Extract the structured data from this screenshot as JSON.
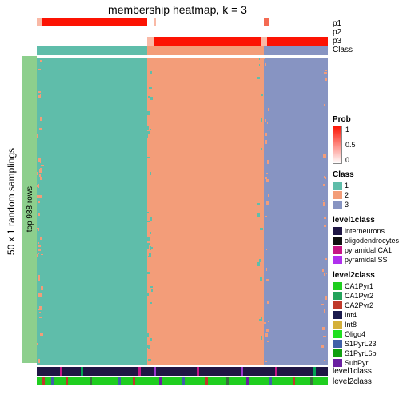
{
  "title": "membership heatmap, k = 3",
  "left_axis_label": "50 x 1 random samplings",
  "row_anno_label": "top 988 rows",
  "row_anno_color": "#8dcf8d",
  "top_annotations": {
    "labels": [
      "p1",
      "p2",
      "p3",
      "Class"
    ],
    "rows": [
      {
        "segments": [
          {
            "w": 0.02,
            "c": "#f9b9a6"
          },
          {
            "w": 0.36,
            "c": "#fc1303"
          },
          {
            "w": 0.02,
            "c": "#ffffff"
          },
          {
            "w": 0.01,
            "c": "#f9b9a6"
          },
          {
            "w": 0.37,
            "c": "#ffffff"
          },
          {
            "w": 0.02,
            "c": "#f46a52"
          },
          {
            "w": 0.2,
            "c": "#ffffff"
          }
        ]
      },
      {
        "segments": [
          {
            "w": 1.0,
            "c": "#ffffff"
          }
        ]
      },
      {
        "segments": [
          {
            "w": 0.38,
            "c": "#ffffff"
          },
          {
            "w": 0.02,
            "c": "#f9b9a6"
          },
          {
            "w": 0.37,
            "c": "#fc1303"
          },
          {
            "w": 0.02,
            "c": "#f9b9a6"
          },
          {
            "w": 0.21,
            "c": "#fc1303"
          }
        ]
      },
      {
        "segments": [
          {
            "w": 0.38,
            "c": "#5fbdaa"
          },
          {
            "w": 0.4,
            "c": "#f39d79"
          },
          {
            "w": 0.22,
            "c": "#8794c2"
          }
        ]
      }
    ]
  },
  "heatmap": {
    "blocks": [
      {
        "w": 0.38,
        "c": "#5fbdaa",
        "noise_c": "#f39d79"
      },
      {
        "w": 0.4,
        "c": "#f39d79",
        "noise_c": "#5fbdaa"
      },
      {
        "w": 0.22,
        "c": "#8794c2",
        "noise_c": "#f39d79"
      }
    ]
  },
  "bottom_annotations": {
    "labels": [
      "level1class",
      "level2class"
    ],
    "rows": [
      {
        "base": "#1f1644",
        "stripes": [
          {
            "p": 0.08,
            "c": "#c71585"
          },
          {
            "p": 0.15,
            "c": "#02a353"
          },
          {
            "p": 0.35,
            "c": "#c71585"
          },
          {
            "p": 0.4,
            "c": "#9a35cc"
          },
          {
            "p": 0.55,
            "c": "#c71585"
          },
          {
            "p": 0.7,
            "c": "#9a35cc"
          },
          {
            "p": 0.82,
            "c": "#c71585"
          },
          {
            "p": 0.95,
            "c": "#02a353"
          }
        ]
      },
      {
        "base": "#1fce1f",
        "stripes": [
          {
            "p": 0.02,
            "c": "#c0392b"
          },
          {
            "p": 0.05,
            "c": "#4060a8"
          },
          {
            "p": 0.1,
            "c": "#c0392b"
          },
          {
            "p": 0.18,
            "c": "#3a6f3f"
          },
          {
            "p": 0.28,
            "c": "#4060a8"
          },
          {
            "p": 0.33,
            "c": "#c0392b"
          },
          {
            "p": 0.42,
            "c": "#6a1fa0"
          },
          {
            "p": 0.5,
            "c": "#4060a8"
          },
          {
            "p": 0.58,
            "c": "#c0392b"
          },
          {
            "p": 0.65,
            "c": "#3a6f3f"
          },
          {
            "p": 0.72,
            "c": "#6a1fa0"
          },
          {
            "p": 0.8,
            "c": "#4060a8"
          },
          {
            "p": 0.88,
            "c": "#c0392b"
          },
          {
            "p": 0.94,
            "c": "#3a6f3f"
          }
        ]
      }
    ]
  },
  "legends": {
    "prob": {
      "title": "Prob",
      "ticks": [
        "1",
        "0.5",
        "0"
      ],
      "grad_top": "#fc1303",
      "grad_bot": "#ffffff"
    },
    "class": {
      "title": "Class",
      "items": [
        {
          "l": "1",
          "c": "#5fbdaa"
        },
        {
          "l": "2",
          "c": "#f39d79"
        },
        {
          "l": "3",
          "c": "#8794c2"
        }
      ]
    },
    "level1": {
      "title": "level1class",
      "items": [
        {
          "l": "interneurons",
          "c": "#1f1644"
        },
        {
          "l": "oligodendrocytes",
          "c": "#111111"
        },
        {
          "l": "pyramidal CA1",
          "c": "#c71585"
        },
        {
          "l": "pyramidal SS",
          "c": "#b030ee"
        }
      ]
    },
    "level2": {
      "title": "level2class",
      "items": [
        {
          "l": "CA1Pyr1",
          "c": "#1fce1f"
        },
        {
          "l": "CA1Pyr2",
          "c": "#24a35c"
        },
        {
          "l": "CA2Pyr2",
          "c": "#c0392b"
        },
        {
          "l": "Int4",
          "c": "#1a1a4d"
        },
        {
          "l": "Int8",
          "c": "#d4b03a"
        },
        {
          "l": "Oligo4",
          "c": "#20e020"
        },
        {
          "l": "S1PyrL23",
          "c": "#4060a8"
        },
        {
          "l": "S1PyrL6b",
          "c": "#10a010"
        },
        {
          "l": "SubPyr",
          "c": "#6a1fa0"
        }
      ]
    }
  }
}
